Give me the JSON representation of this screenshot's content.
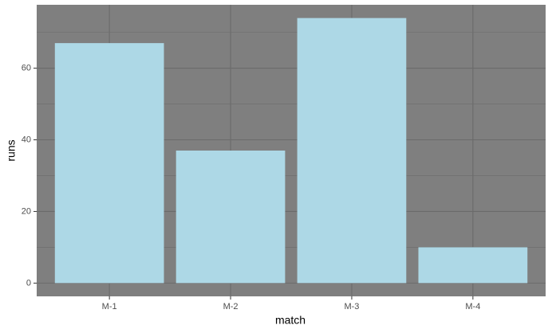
{
  "chart_data": {
    "type": "bar",
    "x_label": "match",
    "y_label": "runs",
    "categories": [
      "M-1",
      "M-2",
      "M-3",
      "M-4"
    ],
    "values": [
      67,
      37,
      74,
      10
    ],
    "color": "#add8e6",
    "panel_color": "#7f7f7f",
    "grid_color": "#6b6b6b",
    "ylim": [
      -3.7,
      77.7
    ],
    "yticks": [
      0,
      20,
      40,
      60
    ],
    "minor_yticks": [
      10,
      30,
      50,
      70
    ],
    "grid": true
  }
}
